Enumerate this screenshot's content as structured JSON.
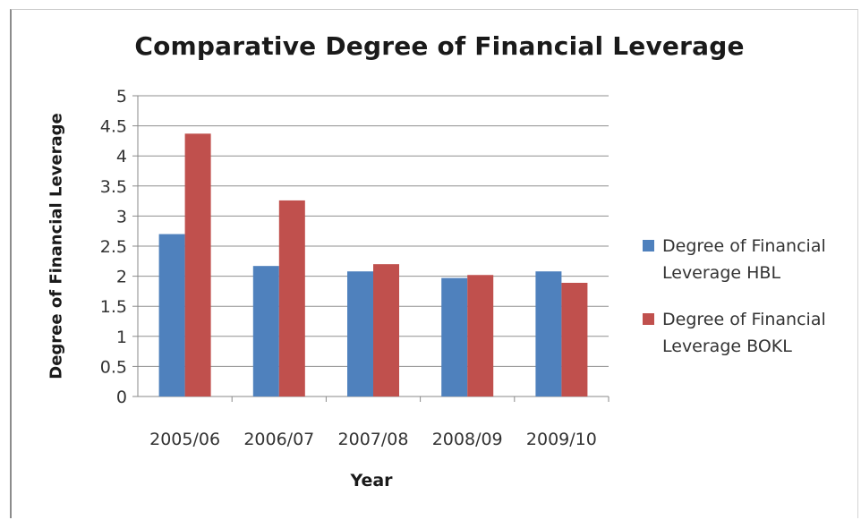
{
  "chart_data": {
    "type": "bar",
    "title": "Comparative Degree of Financial Leverage",
    "xlabel": "Year",
    "ylabel": "Degree of Financial Leverage",
    "categories": [
      "2005/06",
      "2006/07",
      "2007/08",
      "2008/09",
      "2009/10"
    ],
    "series": [
      {
        "name": "Degree of Financial Leverage HBL",
        "values": [
          2.7,
          2.17,
          2.08,
          1.97,
          2.08
        ],
        "color": "#4f81bd"
      },
      {
        "name": "Degree of Financial Leverage BOKL",
        "values": [
          4.37,
          3.26,
          2.2,
          2.02,
          1.89
        ],
        "color": "#c0504d"
      }
    ],
    "ylim": [
      0,
      5
    ],
    "yticks": [
      "0",
      "0.5",
      "1",
      "1.5",
      "2",
      "2.5",
      "3",
      "3.5",
      "4",
      "4.5",
      "5"
    ],
    "grid": true,
    "legend": "right"
  }
}
